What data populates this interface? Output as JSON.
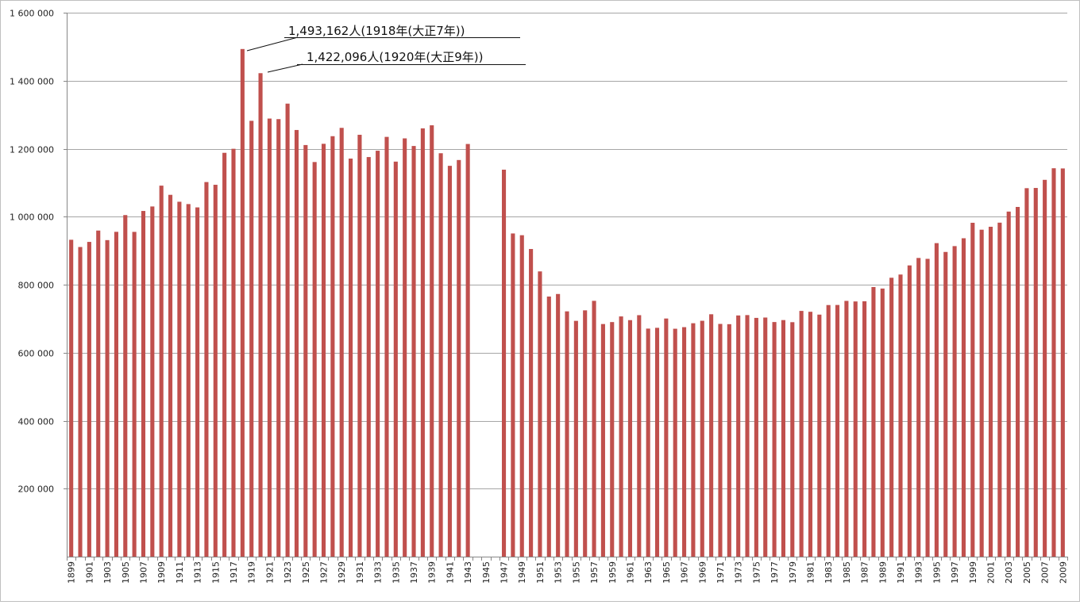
{
  "chart_data": {
    "type": "bar",
    "title": "",
    "xlabel": "",
    "ylabel": "",
    "ylim": [
      0,
      1600000
    ],
    "grid": true,
    "bar_color": "#C0504D",
    "grid_color": "#a6a6a6",
    "y_ticks": [
      {
        "value": 200000,
        "label": "200 000"
      },
      {
        "value": 400000,
        "label": "400 000"
      },
      {
        "value": 600000,
        "label": "600 000"
      },
      {
        "value": 800000,
        "label": "800 000"
      },
      {
        "value": 1000000,
        "label": "1 000 000"
      },
      {
        "value": 1200000,
        "label": "1 200 000"
      },
      {
        "value": 1400000,
        "label": "1 400 000"
      },
      {
        "value": 1600000,
        "label": "1 600 000"
      }
    ],
    "categories": [
      "1899",
      "1900",
      "1901",
      "1902",
      "1903",
      "1904",
      "1905",
      "1906",
      "1907",
      "1908",
      "1909",
      "1910",
      "1911",
      "1912",
      "1913",
      "1914",
      "1915",
      "1916",
      "1917",
      "1918",
      "1919",
      "1920",
      "1921",
      "1922",
      "1923",
      "1924",
      "1925",
      "1926",
      "1927",
      "1928",
      "1929",
      "1930",
      "1931",
      "1932",
      "1933",
      "1934",
      "1935",
      "1936",
      "1937",
      "1938",
      "1939",
      "1940",
      "1941",
      "1942",
      "1943",
      "1944",
      "1945",
      "1946",
      "1947",
      "1948",
      "1949",
      "1950",
      "1951",
      "1952",
      "1953",
      "1954",
      "1955",
      "1956",
      "1957",
      "1958",
      "1959",
      "1960",
      "1961",
      "1962",
      "1963",
      "1964",
      "1965",
      "1966",
      "1967",
      "1968",
      "1969",
      "1970",
      "1971",
      "1972",
      "1973",
      "1974",
      "1975",
      "1976",
      "1977",
      "1978",
      "1979",
      "1980",
      "1981",
      "1982",
      "1983",
      "1984",
      "1985",
      "1986",
      "1987",
      "1988",
      "1989",
      "1990",
      "1991",
      "1992",
      "1993",
      "1994",
      "1995",
      "1996",
      "1997",
      "1998",
      "1999",
      "2000",
      "2001",
      "2002",
      "2003",
      "2004",
      "2005",
      "2006",
      "2007",
      "2008",
      "2009"
    ],
    "x_tick_labels": [
      "1899",
      "1901",
      "1903",
      "1905",
      "1907",
      "1909",
      "1911",
      "1913",
      "1915",
      "1917",
      "1919",
      "1921",
      "1923",
      "1925",
      "1927",
      "1929",
      "1931",
      "1933",
      "1935",
      "1937",
      "1939",
      "1941",
      "1943",
      "1945",
      "1947",
      "1949",
      "1951",
      "1953",
      "1955",
      "1957",
      "1959",
      "1961",
      "1963",
      "1965",
      "1967",
      "1969",
      "1971",
      "1973",
      "1975",
      "1977",
      "1979",
      "1981",
      "1983",
      "1985",
      "1987",
      "1989",
      "1991",
      "1993",
      "1995",
      "1997",
      "1999",
      "2001",
      "2003",
      "2005",
      "2007",
      "2009"
    ],
    "values": [
      932087,
      910744,
      925810,
      959126,
      931008,
      955400,
      1004661,
      955256,
      1016798,
      1029998,
      1091264,
      1064234,
      1043906,
      1037016,
      1027257,
      1101815,
      1093793,
      1187832,
      1199669,
      1493162,
      1281965,
      1422096,
      1288570,
      1286941,
      1332485,
      1254946,
      1210706,
      1160734,
      1214323,
      1236711,
      1261228,
      1170867,
      1240891,
      1175344,
      1193987,
      1234684,
      1161936,
      1230278,
      1207899,
      1259805,
      1268760,
      1186595,
      1149559,
      1166630,
      1213811,
      null,
      null,
      null,
      1138238,
      950610,
      945444,
      904876,
      838998,
      765068,
      772547,
      721491,
      693523,
      724460,
      752445,
      684189,
      689959,
      706599,
      695644,
      710265,
      670770,
      673067,
      700438,
      670342,
      675006,
      686555,
      693787,
      712962,
      684521,
      683751,
      709416,
      710510,
      702275,
      703270,
      690074,
      695821,
      689664,
      722801,
      720262,
      711883,
      740038,
      740247,
      752283,
      750620,
      751172,
      793014,
      788594,
      820305,
      829797,
      856643,
      878532,
      875933,
      922139,
      896211,
      913402,
      936484,
      982031,
      961653,
      970331,
      982379,
      1014951,
      1028602,
      1083796,
      1084450,
      1108334,
      1142407,
      1141865
    ],
    "annotations": [
      {
        "text": "1,493,162人(1918年(大正7年))",
        "year": "1918"
      },
      {
        "text": "1,422,096人(1920年(大正9年))",
        "year": "1920"
      }
    ]
  }
}
